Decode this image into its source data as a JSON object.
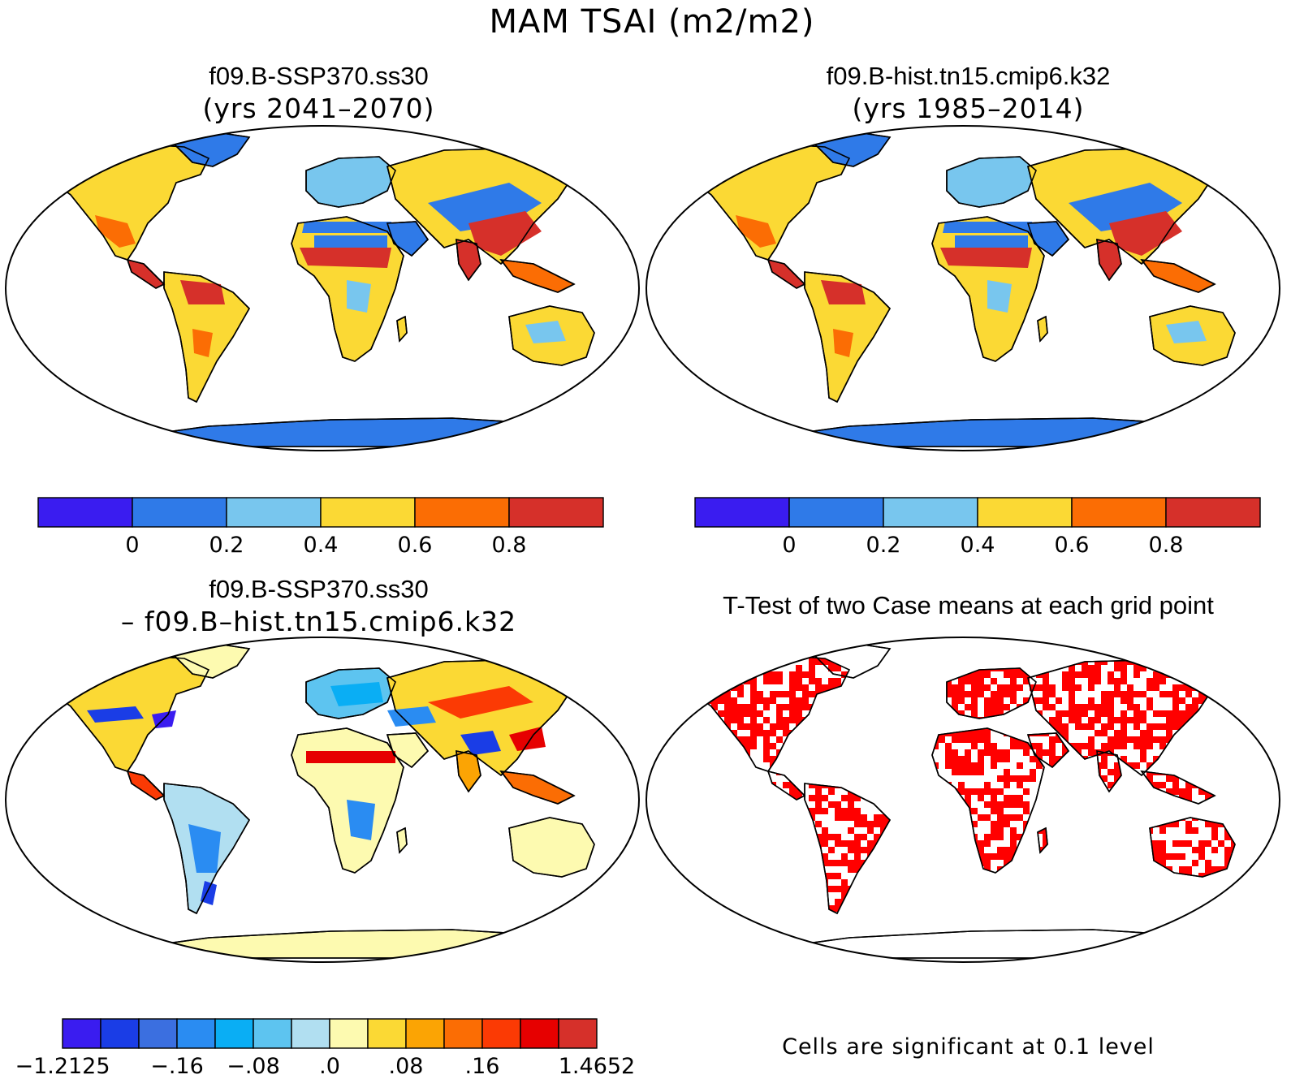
{
  "figure": {
    "title": "MAM TSAI (m2/m2)"
  },
  "panels": {
    "top_left": {
      "title": "f09.B-SSP370.ss30",
      "subtitle": "(yrs 2041–2070)"
    },
    "top_right": {
      "title": "f09.B-hist.tn15.cmip6.k32",
      "subtitle": "(yrs 1985–2014)"
    },
    "bottom_left": {
      "title": "f09.B-SSP370.ss30",
      "subtitle": "– f09.B–hist.tn15.cmip6.k32"
    },
    "bottom_right": {
      "title": "T-Test of two Case means at each grid point",
      "note": "Cells are significant at 0.1 level"
    }
  },
  "colorbars": {
    "absolute": {
      "colors": [
        "#3a1cf0",
        "#2f7ae8",
        "#78c6ee",
        "#fbd934",
        "#fb6d04",
        "#d6302a"
      ],
      "tick_labels": [
        "0",
        "0.2",
        "0.4",
        "0.6",
        "0.8"
      ]
    },
    "difference": {
      "colors": [
        "#3a1cf0",
        "#1a3de6",
        "#3b6fe0",
        "#2a8cf2",
        "#0aaef4",
        "#5dc4f0",
        "#b1dff1",
        "#fdfab0",
        "#fbd934",
        "#fba404",
        "#fb6d04",
        "#fb3a04",
        "#e60000",
        "#d6302a"
      ],
      "tick_labels": [
        "−1.2125",
        "−.16",
        "−.08",
        ".0",
        ".08",
        ".16",
        "1.4652"
      ]
    }
  },
  "chart_data": [
    {
      "type": "heatmap",
      "title": "f09.B-SSP370.ss30",
      "subtitle": "(yrs 2041–2070)",
      "projection": "Robinson",
      "variable": "MAM TSAI",
      "units": "m2/m2",
      "levels": [
        0,
        0.2,
        0.4,
        0.6,
        0.8
      ],
      "colors": [
        "#3a1cf0",
        "#2f7ae8",
        "#78c6ee",
        "#fbd934",
        "#fb6d04",
        "#d6302a"
      ]
    },
    {
      "type": "heatmap",
      "title": "f09.B-hist.tn15.cmip6.k32",
      "subtitle": "(yrs 1985–2014)",
      "projection": "Robinson",
      "variable": "MAM TSAI",
      "units": "m2/m2",
      "levels": [
        0,
        0.2,
        0.4,
        0.6,
        0.8
      ],
      "colors": [
        "#3a1cf0",
        "#2f7ae8",
        "#78c6ee",
        "#fbd934",
        "#fb6d04",
        "#d6302a"
      ]
    },
    {
      "type": "heatmap",
      "title": "f09.B-SSP370.ss30",
      "subtitle": "– f09.B–hist.tn15.cmip6.k32",
      "projection": "Robinson",
      "levels_labeled": [
        "−1.2125",
        "−.16",
        "−.08",
        ".0",
        ".08",
        ".16",
        "1.4652"
      ],
      "range": [
        -1.2125,
        1.4652
      ]
    },
    {
      "type": "heatmap",
      "title": "T-Test of two Case means at each grid point",
      "projection": "Robinson",
      "significance_level": 0.1,
      "significant_color": "#ff0000"
    }
  ]
}
